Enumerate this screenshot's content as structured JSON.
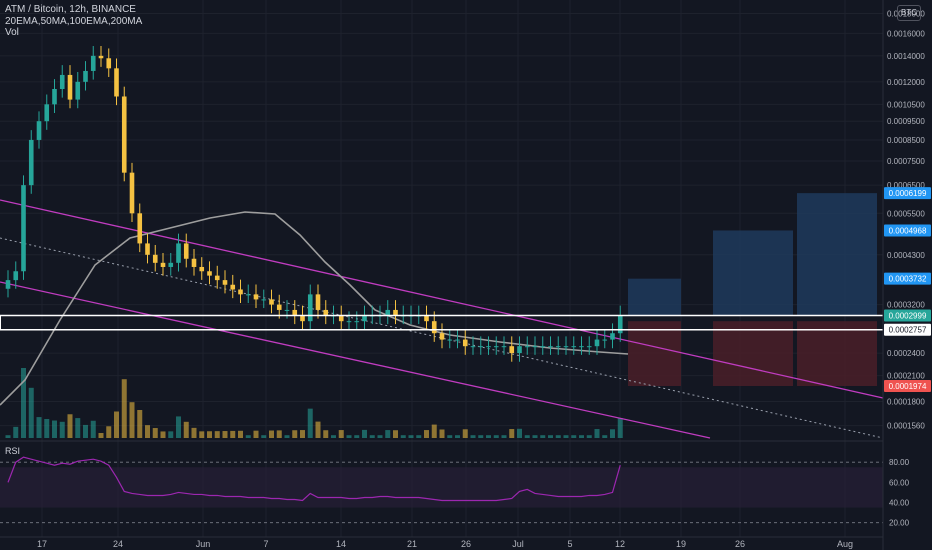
{
  "legend": {
    "title": "ATM / Bitcoin, 12h, BINANCE",
    "indicators": "20EMA,50MA,100EMA,200MA",
    "volume": "Vol",
    "rsi": "RSI"
  },
  "currency_badge": "BTC",
  "colors": {
    "background": "#131722",
    "grid": "#1e222d",
    "up": "#26a69a",
    "down": "#f5c242",
    "channel": "#c03cc0",
    "ma_line": "#9e9e9e",
    "target_box": "#1e3a5c",
    "stop_box": "#4a1f28",
    "entry_line": "#ffffff",
    "rsi_line": "#9c27b0",
    "rsi_band": "#2a1f3a"
  },
  "chart_data": {
    "type": "candlestick",
    "price_axis": {
      "scale": "log",
      "ticks": [
        "0.0018000",
        "0.0016000",
        "0.0014000",
        "0.0012000",
        "0.0010500",
        "0.0009500",
        "0.0008500",
        "0.0007500",
        "0.0006500",
        "0.0005500",
        "0.0004300",
        "0.0003200",
        "0.0002400",
        "0.0002100",
        "0.0001800",
        "0.0001560"
      ],
      "tick_values": [
        0.0018,
        0.0016,
        0.0014,
        0.0012,
        0.00105,
        0.00095,
        0.00085,
        0.00075,
        0.00065,
        0.00055,
        0.00043,
        0.00032,
        0.00024,
        0.00021,
        0.00018,
        0.000156
      ],
      "range": [
        0.000145,
        0.00195
      ]
    },
    "x_axis": {
      "labels": [
        "17",
        "24",
        "Jun",
        "7",
        "14",
        "21",
        "26",
        "Jul",
        "5",
        "12",
        "19",
        "26",
        "Aug"
      ]
    },
    "price_labels": [
      {
        "text": "0.0006199",
        "value": 0.0006199,
        "color": "#2196f3"
      },
      {
        "text": "0.0004968",
        "value": 0.0004968,
        "color": "#2196f3"
      },
      {
        "text": "0.0003732",
        "value": 0.0003732,
        "color": "#2196f3"
      },
      {
        "text": "0.0002999",
        "value": 0.0002999,
        "color": "#26a69a"
      },
      {
        "text": "0.0002757",
        "value": 0.0002757,
        "color": "#ffffff"
      },
      {
        "text": "0.0001974",
        "value": 0.0001974,
        "color": "#ef5350"
      }
    ],
    "entry_zone": [
      0.0002757,
      0.0002999
    ],
    "targets": [
      0.0003732,
      0.0004968,
      0.0006199
    ],
    "stop": 0.0001974,
    "close_series": [
      0.00037,
      0.00039,
      0.00065,
      0.00085,
      0.00095,
      0.00105,
      0.00115,
      0.00125,
      0.00108,
      0.0012,
      0.00128,
      0.0014,
      0.00138,
      0.0013,
      0.0011,
      0.0007,
      0.00055,
      0.00046,
      0.00043,
      0.00041,
      0.0004,
      0.00041,
      0.00046,
      0.00042,
      0.0004,
      0.00039,
      0.00038,
      0.00037,
      0.00036,
      0.00035,
      0.00034,
      0.00034,
      0.00033,
      0.00033,
      0.00032,
      0.00031,
      0.00031,
      0.0003,
      0.00029,
      0.00034,
      0.00031,
      0.0003,
      0.0003,
      0.00029,
      0.00029,
      0.00029,
      0.0003,
      0.0003,
      0.0003,
      0.00031,
      0.0003,
      0.0003,
      0.0003,
      0.0003,
      0.00029,
      0.00027,
      0.00026,
      0.00026,
      0.00026,
      0.00025,
      0.00025,
      0.00025,
      0.00025,
      0.00025,
      0.00025,
      0.00024,
      0.00025,
      0.00025,
      0.00025,
      0.00025,
      0.00025,
      0.00025,
      0.00025,
      0.00025,
      0.00025,
      0.00025,
      0.00026,
      0.00026,
      0.00027,
      0.0003
    ],
    "rsi": {
      "levels": [
        80,
        60,
        40,
        20
      ],
      "level_labels": [
        "80.00",
        "60.00",
        "40.00",
        "20.00"
      ],
      "band": [
        30,
        70
      ],
      "values": [
        55,
        75,
        80,
        78,
        76,
        74,
        72,
        74,
        73,
        76,
        77,
        78,
        76,
        72,
        60,
        46,
        44,
        43,
        42,
        42,
        42,
        43,
        45,
        44,
        43,
        43,
        42,
        42,
        41,
        41,
        41,
        40,
        40,
        40,
        39,
        39,
        38,
        38,
        37,
        44,
        40,
        40,
        40,
        40,
        39,
        39,
        40,
        40,
        41,
        41,
        40,
        40,
        40,
        40,
        39,
        38,
        37,
        37,
        37,
        37,
        37,
        37,
        37,
        37,
        38,
        39,
        46,
        48,
        44,
        43,
        42,
        41,
        41,
        41,
        41,
        42,
        42,
        43,
        45,
        72
      ]
    }
  }
}
